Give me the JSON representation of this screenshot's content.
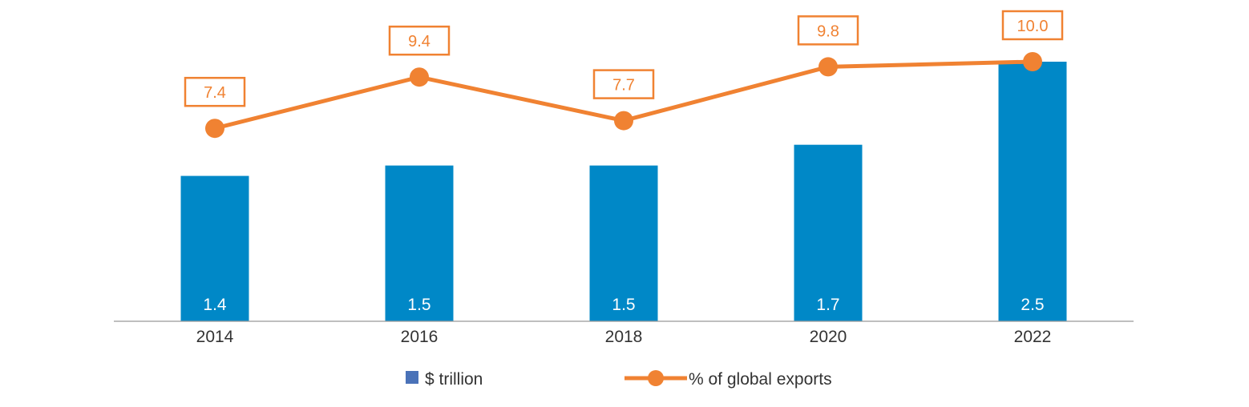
{
  "chart_data": {
    "type": "bar",
    "categories": [
      "2014",
      "2016",
      "2018",
      "2020",
      "2022"
    ],
    "series": [
      {
        "name": "$ trillion",
        "kind": "bar",
        "values": [
          1.4,
          1.5,
          1.5,
          1.7,
          2.5
        ],
        "value_labels": [
          "1.4",
          "1.5",
          "1.5",
          "1.7",
          "2.5"
        ],
        "color": "#0088C7"
      },
      {
        "name": "% of global exports",
        "kind": "line",
        "values": [
          7.4,
          9.4,
          7.7,
          9.8,
          10.0
        ],
        "value_labels": [
          "7.4",
          "9.4",
          "7.7",
          "9.8",
          "10.0"
        ],
        "color": "#F08232"
      }
    ],
    "bar_axis_range": [
      0,
      2.5
    ],
    "line_axis_range": [
      0,
      10.0
    ],
    "grid": false,
    "legend_position": "bottom",
    "legend_bar_swatch_color": "#4A72B8"
  }
}
